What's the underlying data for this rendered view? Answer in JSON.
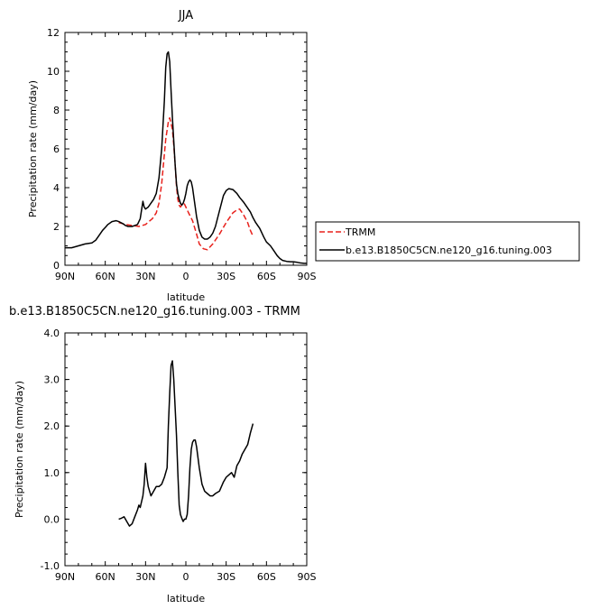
{
  "chart_data": [
    {
      "type": "line",
      "title": "JJA",
      "xlabel": "latitude",
      "ylabel": "Precipitation rate (mm/day)",
      "xlim": [
        90,
        -90
      ],
      "ylim": [
        0,
        12
      ],
      "x_ticks": [
        90,
        60,
        30,
        0,
        -30,
        -60,
        -90
      ],
      "x_tick_labels": [
        "90N",
        "60N",
        "30N",
        "0",
        "30S",
        "60S",
        "90S"
      ],
      "y_ticks": [
        0,
        2,
        4,
        6,
        8,
        10,
        12
      ],
      "y_tick_labels": [
        "0",
        "2",
        "4",
        "6",
        "8",
        "10",
        "12"
      ],
      "grid": false,
      "legend_position": "right",
      "series": [
        {
          "name": "TRMM",
          "color": "#e8211c",
          "style": "dashed",
          "x": [
            50,
            45,
            40,
            35,
            30,
            25,
            22,
            20,
            18,
            15,
            13,
            12,
            10,
            9,
            8,
            7,
            6,
            5,
            4,
            3,
            2,
            1,
            0,
            -2,
            -5,
            -8,
            -10,
            -13,
            -16,
            -20,
            -25,
            -30,
            -35,
            -38,
            -40,
            -43,
            -46,
            -48,
            -50
          ],
          "y": [
            2.2,
            2.1,
            2.05,
            2.0,
            2.1,
            2.4,
            2.7,
            3.2,
            4.2,
            6.5,
            7.4,
            7.6,
            7.0,
            6.2,
            5.2,
            4.1,
            3.4,
            3.1,
            3.0,
            3.1,
            3.2,
            3.15,
            3.0,
            2.7,
            2.3,
            1.6,
            1.1,
            0.85,
            0.8,
            1.1,
            1.6,
            2.2,
            2.7,
            2.85,
            2.9,
            2.6,
            2.2,
            1.8,
            1.5
          ]
        },
        {
          "name": "b.e13.B1850C5CN.ne120_g16.tuning.003",
          "color": "#000000",
          "style": "solid",
          "x": [
            90,
            85,
            80,
            75,
            70,
            67,
            65,
            62,
            60,
            58,
            55,
            52,
            50,
            47,
            45,
            43,
            40,
            38,
            36,
            34,
            32,
            31,
            30,
            28,
            26,
            24,
            22,
            20,
            18,
            16,
            15,
            14,
            13,
            12,
            11,
            10,
            9,
            8,
            7,
            6,
            5,
            4,
            3,
            2,
            1,
            0,
            -1,
            -2,
            -3,
            -4,
            -5,
            -6,
            -7,
            -8,
            -10,
            -12,
            -14,
            -16,
            -18,
            -20,
            -22,
            -25,
            -28,
            -30,
            -32,
            -35,
            -38,
            -40,
            -43,
            -45,
            -48,
            -50,
            -52,
            -55,
            -58,
            -60,
            -63,
            -65,
            -68,
            -70,
            -72,
            -75,
            -78,
            -80,
            -83,
            -85,
            -88,
            -90
          ],
          "y": [
            0.9,
            0.9,
            1.0,
            1.1,
            1.15,
            1.3,
            1.5,
            1.8,
            1.95,
            2.1,
            2.25,
            2.3,
            2.25,
            2.15,
            2.05,
            2.0,
            2.0,
            2.05,
            2.1,
            2.4,
            3.3,
            3.0,
            2.9,
            3.0,
            3.2,
            3.4,
            3.7,
            4.5,
            6.0,
            8.5,
            10.2,
            10.9,
            11.0,
            10.5,
            9.0,
            7.6,
            6.4,
            5.2,
            4.2,
            3.7,
            3.4,
            3.2,
            3.1,
            3.2,
            3.4,
            3.7,
            4.1,
            4.3,
            4.4,
            4.3,
            4.0,
            3.5,
            3.0,
            2.5,
            1.8,
            1.45,
            1.35,
            1.35,
            1.45,
            1.65,
            2.0,
            2.8,
            3.6,
            3.85,
            3.95,
            3.9,
            3.7,
            3.5,
            3.25,
            3.05,
            2.75,
            2.45,
            2.2,
            1.9,
            1.45,
            1.2,
            1.0,
            0.8,
            0.5,
            0.35,
            0.25,
            0.2,
            0.18,
            0.18,
            0.15,
            0.12,
            0.1,
            0.1
          ]
        }
      ]
    },
    {
      "type": "line",
      "title": "b.e13.B1850C5CN.ne120_g16.tuning.003 - TRMM",
      "xlabel": "latitude",
      "ylabel": "Precipitation rate (mm/day)",
      "xlim": [
        90,
        -90
      ],
      "ylim": [
        -1.0,
        4.0
      ],
      "x_ticks": [
        90,
        60,
        30,
        0,
        -30,
        -60,
        -90
      ],
      "x_tick_labels": [
        "90N",
        "60N",
        "30N",
        "0",
        "30S",
        "60S",
        "90S"
      ],
      "y_ticks": [
        -1,
        0,
        1,
        2,
        3,
        4
      ],
      "y_tick_labels": [
        "-1.0",
        "0.0",
        "1.0",
        "2.0",
        "3.0",
        "4.0"
      ],
      "grid": false,
      "series": [
        {
          "color": "#000000",
          "style": "solid",
          "x": [
            50,
            48,
            46,
            44,
            42,
            40,
            38,
            36,
            35,
            34,
            32,
            31,
            30,
            29,
            28,
            26,
            24,
            22,
            20,
            18,
            16,
            14,
            13,
            12,
            11,
            10,
            9,
            8,
            7,
            6,
            5,
            4,
            3,
            2,
            1,
            0,
            -1,
            -2,
            -3,
            -4,
            -5,
            -6,
            -7,
            -8,
            -10,
            -12,
            -14,
            -16,
            -18,
            -20,
            -22,
            -25,
            -28,
            -30,
            -32,
            -34,
            -36,
            -38,
            -40,
            -42,
            -44,
            -46,
            -48,
            -50
          ],
          "y": [
            0.0,
            0.02,
            0.05,
            -0.05,
            -0.15,
            -0.1,
            0.05,
            0.2,
            0.3,
            0.25,
            0.5,
            0.75,
            1.2,
            0.9,
            0.7,
            0.5,
            0.6,
            0.7,
            0.7,
            0.75,
            0.9,
            1.1,
            2.0,
            2.7,
            3.3,
            3.4,
            3.0,
            2.4,
            1.8,
            1.0,
            0.3,
            0.1,
            0.02,
            -0.05,
            0.0,
            0.0,
            0.1,
            0.5,
            1.1,
            1.5,
            1.65,
            1.7,
            1.7,
            1.55,
            1.1,
            0.75,
            0.6,
            0.55,
            0.5,
            0.5,
            0.55,
            0.6,
            0.8,
            0.9,
            0.95,
            1.0,
            0.9,
            1.15,
            1.25,
            1.4,
            1.5,
            1.6,
            1.85,
            2.05
          ]
        }
      ]
    }
  ]
}
